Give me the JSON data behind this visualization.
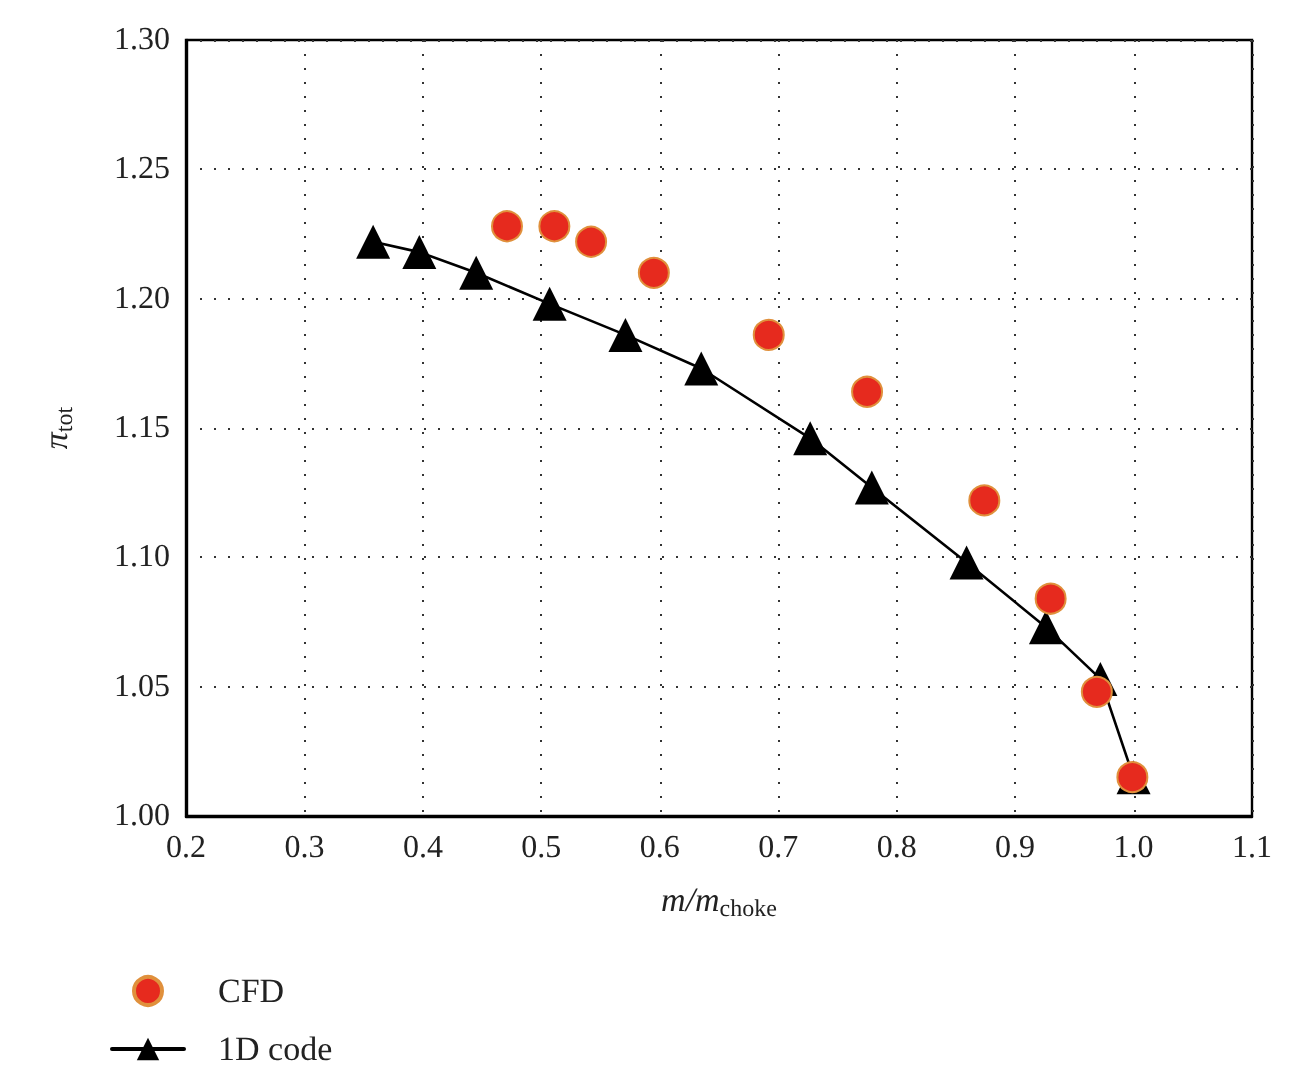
{
  "chart_data": {
    "type": "line",
    "xlabel": "m/m$_{choke}$",
    "ylabel": "π$_{tot}$",
    "xlim": [
      0.2,
      1.1
    ],
    "ylim": [
      1.0,
      1.3
    ],
    "xticks": [
      0.2,
      0.3,
      0.4,
      0.5,
      0.6,
      0.7,
      0.8,
      0.9,
      {
        "value": 1.0,
        "label": "1.0"
      },
      1.1
    ],
    "yticks": [
      {
        "value": 1.0,
        "label": "1.00"
      },
      1.05,
      {
        "value": 1.1,
        "label": "1.10"
      },
      1.15,
      {
        "value": 1.2,
        "label": "1.20"
      },
      1.25,
      {
        "value": 1.3,
        "label": "1.30"
      }
    ],
    "grid": true,
    "legend": "bottom left",
    "series": [
      {
        "name": "CFD",
        "type": "scatter",
        "marker": "circle",
        "color": "#e62a1e",
        "x": [
          0.471,
          0.511,
          0.542,
          0.595,
          0.692,
          0.775,
          0.874,
          0.93,
          0.969,
          0.999
        ],
        "values": [
          1.228,
          1.228,
          1.222,
          1.21,
          1.186,
          1.164,
          1.122,
          1.084,
          1.048,
          1.015
        ]
      },
      {
        "name": "1D code",
        "marker": "triangle",
        "line_style": "solid",
        "color": "#000000",
        "x": [
          0.358,
          0.397,
          0.445,
          0.507,
          0.571,
          0.635,
          0.727,
          0.779,
          0.859,
          0.926,
          0.972,
          1.0
        ],
        "values": [
          1.222,
          1.218,
          1.21,
          1.198,
          1.186,
          1.173,
          1.146,
          1.127,
          1.098,
          1.073,
          1.053,
          1.015
        ]
      }
    ]
  }
}
